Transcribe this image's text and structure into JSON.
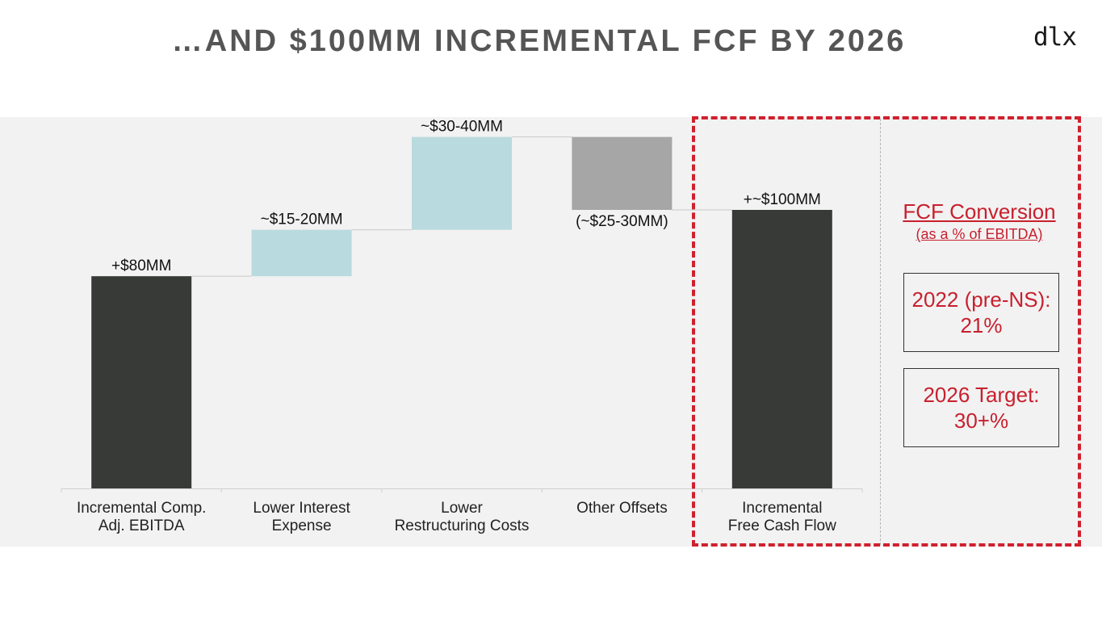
{
  "header": {
    "title": "…AND $100MM INCREMENTAL FCF BY 2026",
    "logo_text": "dlx"
  },
  "chart_data": {
    "type": "bar",
    "subtype": "waterfall",
    "categories": [
      [
        "Incremental Comp.",
        "Adj. EBITDA"
      ],
      [
        "Lower Interest",
        "Expense"
      ],
      [
        "Lower",
        "Restructuring Costs"
      ],
      [
        "Other Offsets"
      ],
      [
        "Incremental",
        "Free Cash Flow"
      ]
    ],
    "bars": [
      {
        "start": 0,
        "end": 80,
        "kind": "total",
        "label": "+$80MM"
      },
      {
        "start": 80,
        "end": 97.5,
        "kind": "increase",
        "label": "~$15-20MM"
      },
      {
        "start": 97.5,
        "end": 132.5,
        "kind": "increase",
        "label": "~$30-40MM"
      },
      {
        "start": 132.5,
        "end": 105,
        "kind": "decrease",
        "label": "(~$25-30MM)"
      },
      {
        "start": 0,
        "end": 105,
        "kind": "total",
        "label": "+~$100MM"
      }
    ],
    "ylim": [
      0,
      140
    ],
    "grid": false,
    "colors": {
      "total": "#383a38",
      "increase": "#b9dade",
      "decrease": "#a6a6a6"
    }
  },
  "side_panel": {
    "title": "FCF Conversion",
    "subtitle": "(as a % of EBITDA)",
    "boxes": [
      {
        "line1": "2022 (pre-NS):",
        "line2": "21%"
      },
      {
        "line1": "2026 Target:",
        "line2": "30+%"
      }
    ],
    "accent_color": "#c8202e"
  }
}
